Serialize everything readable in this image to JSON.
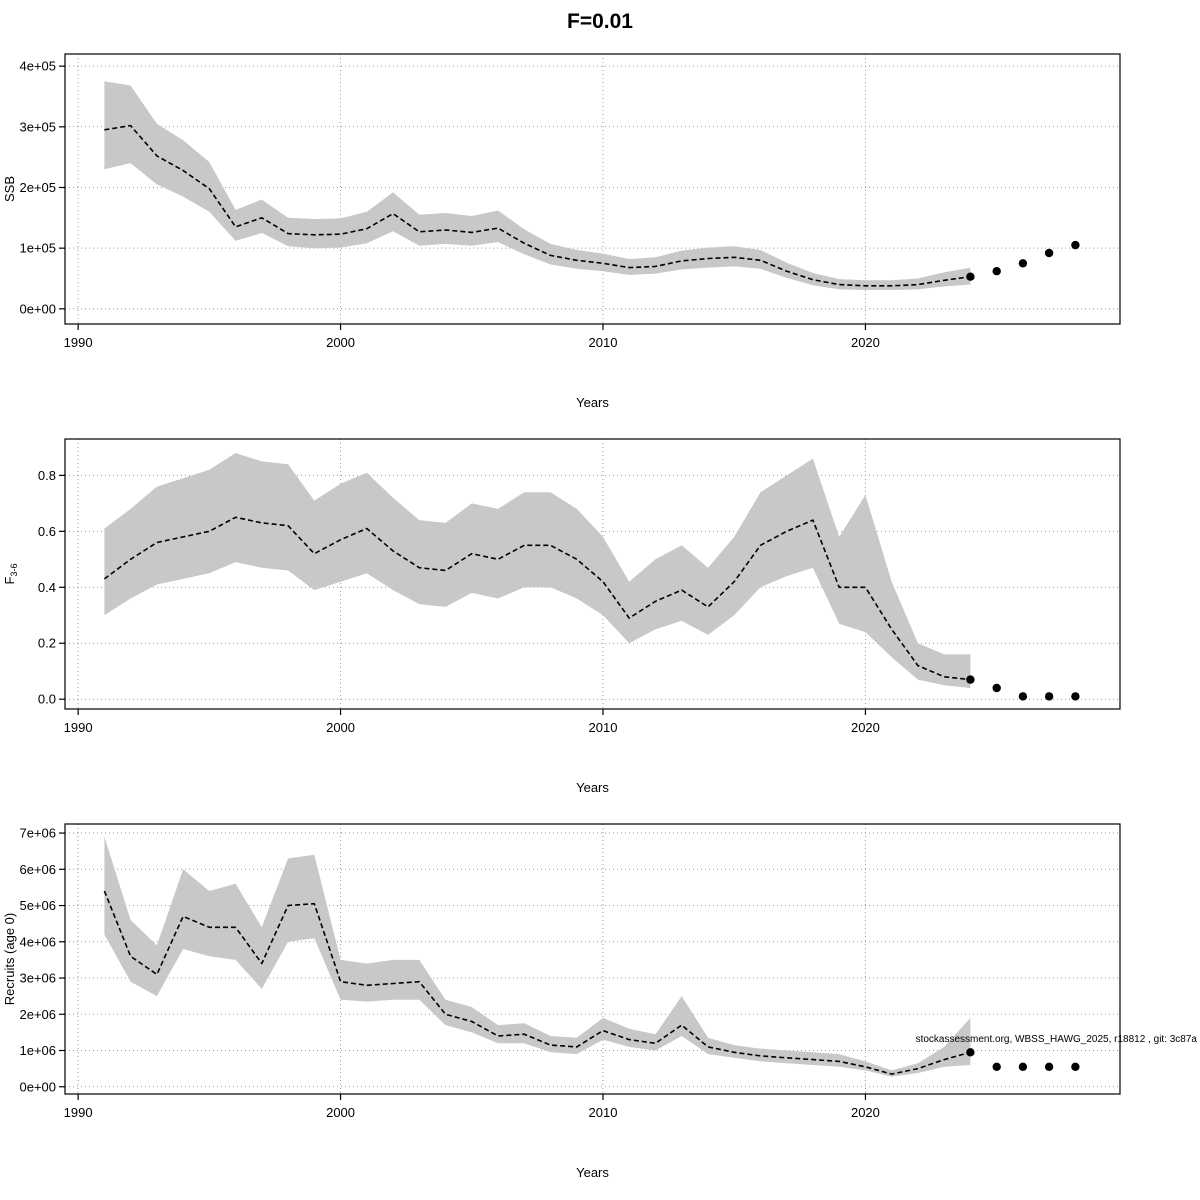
{
  "title": "F=0.01",
  "annotation": "stockassessment.org, WBSS_HAWG_2025, r18812 , git: 3c87a",
  "chart_data": [
    {
      "type": "area",
      "name": "ssb",
      "xlabel": "Years",
      "ylabel": "SSB",
      "ylabel_sub": "",
      "xlim": [
        1989.5,
        2029.7
      ],
      "ylim": [
        -25000,
        420000
      ],
      "xticks": [
        1990,
        2000,
        2010,
        2020
      ],
      "yticks": [
        0,
        100000,
        200000,
        300000,
        400000
      ],
      "ytick_labels": [
        "0e+00",
        "1e+05",
        "2e+05",
        "3e+05",
        "4e+05"
      ],
      "forecast_start": 2024,
      "x": [
        1991,
        1992,
        1993,
        1994,
        1995,
        1996,
        1997,
        1998,
        1999,
        2000,
        2001,
        2002,
        2003,
        2004,
        2005,
        2006,
        2007,
        2008,
        2009,
        2010,
        2011,
        2012,
        2013,
        2014,
        2015,
        2016,
        2017,
        2018,
        2019,
        2020,
        2021,
        2022,
        2023,
        2024,
        2025,
        2026,
        2027,
        2028
      ],
      "values": [
        295000,
        302000,
        252000,
        228000,
        198000,
        135000,
        150000,
        124000,
        122000,
        123000,
        132000,
        157000,
        127000,
        130000,
        126000,
        133000,
        108000,
        88000,
        80000,
        75000,
        68000,
        70000,
        79000,
        83000,
        85000,
        80000,
        62000,
        48000,
        40000,
        38000,
        38000,
        40000,
        47000,
        53000,
        62000,
        75000,
        92000,
        105000
      ],
      "lower": [
        230000,
        240000,
        205000,
        185000,
        160000,
        112000,
        125000,
        103000,
        100000,
        101000,
        108000,
        128000,
        104000,
        107000,
        104000,
        110000,
        90000,
        73000,
        66000,
        62000,
        56000,
        58000,
        65000,
        68000,
        70000,
        66000,
        51000,
        39000,
        32000,
        31000,
        31000,
        32000,
        37000,
        40000
      ],
      "upper": [
        375000,
        368000,
        305000,
        278000,
        242000,
        163000,
        180000,
        150000,
        148000,
        149000,
        160000,
        192000,
        155000,
        158000,
        153000,
        162000,
        131000,
        107000,
        97000,
        91000,
        82000,
        85000,
        96000,
        101000,
        103000,
        97000,
        76000,
        59000,
        49000,
        47000,
        47000,
        50000,
        60000,
        68000
      ]
    },
    {
      "type": "area",
      "name": "fishing-mortality",
      "xlabel": "Years",
      "ylabel": "F",
      "ylabel_sub": "3-6",
      "xlim": [
        1989.5,
        2029.7
      ],
      "ylim": [
        -0.035,
        0.93
      ],
      "xticks": [
        1990,
        2000,
        2010,
        2020
      ],
      "yticks": [
        0,
        0.2,
        0.4,
        0.6,
        0.8
      ],
      "ytick_labels": [
        "0.0",
        "0.2",
        "0.4",
        "0.6",
        "0.8"
      ],
      "forecast_start": 2024,
      "x": [
        1991,
        1992,
        1993,
        1994,
        1995,
        1996,
        1997,
        1998,
        1999,
        2000,
        2001,
        2002,
        2003,
        2004,
        2005,
        2006,
        2007,
        2008,
        2009,
        2010,
        2011,
        2012,
        2013,
        2014,
        2015,
        2016,
        2017,
        2018,
        2019,
        2020,
        2021,
        2022,
        2023,
        2024,
        2025,
        2026,
        2027,
        2028
      ],
      "values": [
        0.43,
        0.5,
        0.56,
        0.58,
        0.6,
        0.65,
        0.63,
        0.62,
        0.52,
        0.57,
        0.61,
        0.53,
        0.47,
        0.46,
        0.52,
        0.5,
        0.55,
        0.55,
        0.5,
        0.42,
        0.29,
        0.35,
        0.39,
        0.33,
        0.42,
        0.55,
        0.6,
        0.64,
        0.4,
        0.4,
        0.25,
        0.12,
        0.08,
        0.07,
        0.04,
        0.01,
        0.01,
        0.01
      ],
      "lower": [
        0.3,
        0.36,
        0.41,
        0.43,
        0.45,
        0.49,
        0.47,
        0.46,
        0.39,
        0.42,
        0.45,
        0.39,
        0.34,
        0.33,
        0.38,
        0.36,
        0.4,
        0.4,
        0.36,
        0.3,
        0.2,
        0.25,
        0.28,
        0.23,
        0.3,
        0.4,
        0.44,
        0.47,
        0.27,
        0.24,
        0.15,
        0.07,
        0.05,
        0.04
      ],
      "upper": [
        0.61,
        0.68,
        0.76,
        0.79,
        0.82,
        0.88,
        0.85,
        0.84,
        0.71,
        0.77,
        0.81,
        0.72,
        0.64,
        0.63,
        0.7,
        0.68,
        0.74,
        0.74,
        0.68,
        0.58,
        0.42,
        0.5,
        0.55,
        0.47,
        0.58,
        0.74,
        0.8,
        0.86,
        0.58,
        0.73,
        0.42,
        0.2,
        0.16,
        0.16
      ]
    },
    {
      "type": "area",
      "name": "recruitment",
      "xlabel": "Years",
      "ylabel": "Recruits (age 0)",
      "ylabel_sub": "",
      "xlim": [
        1989.5,
        2029.7
      ],
      "ylim": [
        -200000,
        7250000
      ],
      "xticks": [
        1990,
        2000,
        2010,
        2020
      ],
      "yticks": [
        0,
        1000000,
        2000000,
        3000000,
        4000000,
        5000000,
        6000000,
        7000000
      ],
      "ytick_labels": [
        "0e+00",
        "1e+06",
        "2e+06",
        "3e+06",
        "4e+06",
        "5e+06",
        "6e+06",
        "7e+06"
      ],
      "forecast_start": 2024,
      "has_annotation": true,
      "x": [
        1991,
        1992,
        1993,
        1994,
        1995,
        1996,
        1997,
        1998,
        1999,
        2000,
        2001,
        2002,
        2003,
        2004,
        2005,
        2006,
        2007,
        2008,
        2009,
        2010,
        2011,
        2012,
        2013,
        2014,
        2015,
        2016,
        2017,
        2018,
        2019,
        2020,
        2021,
        2022,
        2023,
        2024,
        2025,
        2026,
        2027,
        2028
      ],
      "values": [
        5400000,
        3600000,
        3100000,
        4700000,
        4400000,
        4400000,
        3400000,
        5000000,
        5050000,
        2900000,
        2800000,
        2850000,
        2900000,
        2000000,
        1800000,
        1400000,
        1450000,
        1150000,
        1100000,
        1550000,
        1300000,
        1200000,
        1700000,
        1100000,
        950000,
        850000,
        800000,
        750000,
        700000,
        550000,
        350000,
        500000,
        750000,
        950000,
        550000,
        550000,
        550000,
        550000
      ],
      "lower": [
        4200000,
        2900000,
        2500000,
        3800000,
        3600000,
        3500000,
        2700000,
        4000000,
        4100000,
        2400000,
        2350000,
        2400000,
        2400000,
        1700000,
        1500000,
        1200000,
        1200000,
        950000,
        900000,
        1300000,
        1100000,
        1000000,
        1400000,
        900000,
        800000,
        700000,
        650000,
        600000,
        550000,
        450000,
        280000,
        380000,
        550000,
        600000
      ],
      "upper": [
        6900000,
        4600000,
        3900000,
        6000000,
        5400000,
        5600000,
        4400000,
        6300000,
        6400000,
        3500000,
        3400000,
        3500000,
        3500000,
        2400000,
        2200000,
        1700000,
        1750000,
        1400000,
        1350000,
        1900000,
        1600000,
        1450000,
        2500000,
        1350000,
        1150000,
        1050000,
        1000000,
        950000,
        900000,
        700000,
        450000,
        650000,
        1100000,
        1900000
      ]
    }
  ]
}
